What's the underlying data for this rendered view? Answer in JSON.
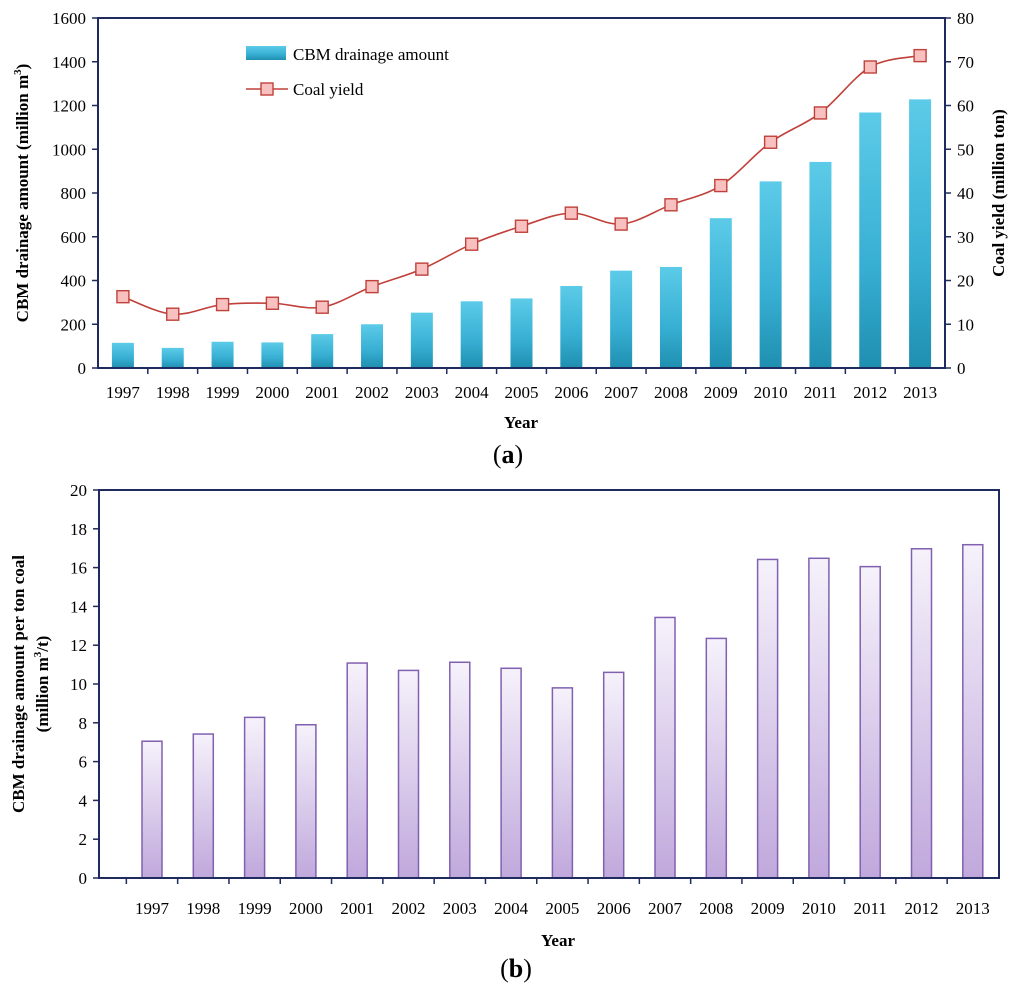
{
  "chart_data": [
    {
      "panel": "a",
      "type": "bar+line",
      "categories": [
        "1997",
        "1998",
        "1999",
        "2000",
        "2001",
        "2002",
        "2003",
        "2004",
        "2005",
        "2006",
        "2007",
        "2008",
        "2009",
        "2010",
        "2011",
        "2012",
        "2013"
      ],
      "series": [
        {
          "name": "CBM drainage amount",
          "kind": "bar",
          "axis": "left",
          "color": "#3cb4d6",
          "values": [
            115,
            92,
            120,
            117,
            155,
            200,
            253,
            305,
            318,
            375,
            445,
            462,
            685,
            853,
            942,
            1168,
            1228
          ]
        },
        {
          "name": "Coal yield",
          "kind": "line",
          "axis": "right",
          "color": "#c0403a",
          "marker_fill": "#f9c0c0",
          "values": [
            16.3,
            12.3,
            14.5,
            14.8,
            13.9,
            18.6,
            22.6,
            28.3,
            32.4,
            35.4,
            32.9,
            37.3,
            41.7,
            51.6,
            58.3,
            68.8,
            71.4
          ]
        }
      ],
      "xlabel": "Year",
      "ylabel_left_main": "CBM drainage amount  (million m",
      "ylabel_left_sup": "3",
      "ylabel_left_end": ")",
      "ylabel_right": "Coal yield (million ton)",
      "ylim_left": [
        0,
        1600
      ],
      "ylim_right": [
        0,
        80
      ],
      "yticks_left": [
        "0",
        "200",
        "400",
        "600",
        "800",
        "1000",
        "1200",
        "1400",
        "1600"
      ],
      "yticks_right": [
        "0",
        "10",
        "20",
        "30",
        "40",
        "50",
        "60",
        "70",
        "80"
      ],
      "legend": [
        "CBM drainage amount",
        "Coal yield"
      ],
      "legend_position": "top-left",
      "label_open": "(",
      "label_letter": "a",
      "label_close": ")"
    },
    {
      "panel": "b",
      "type": "bar",
      "categories": [
        "1997",
        "1998",
        "1999",
        "2000",
        "2001",
        "2002",
        "2003",
        "2004",
        "2005",
        "2006",
        "2007",
        "2008",
        "2009",
        "2010",
        "2011",
        "2012",
        "2013"
      ],
      "series": [
        {
          "name": "CBM drainage amount per ton coal",
          "color": "#8060b0",
          "fill_top": "#f4f0fa",
          "fill_bottom": "#c0a8dc",
          "values": [
            7.05,
            7.42,
            8.28,
            7.9,
            11.08,
            10.7,
            11.12,
            10.81,
            9.8,
            10.6,
            13.43,
            12.35,
            16.42,
            16.48,
            16.05,
            16.97,
            17.18
          ]
        }
      ],
      "xlabel": "Year",
      "ylabel_line1": "CBM drainage amount per ton coal",
      "ylabel_line2_main": "(million m",
      "ylabel_line2_sup": "3",
      "ylabel_line2_end": "/t)",
      "ylim": [
        0,
        20
      ],
      "yticks": [
        "0",
        "2",
        "4",
        "6",
        "8",
        "10",
        "12",
        "14",
        "16",
        "18",
        "20"
      ],
      "label_open": "(",
      "label_letter": "b",
      "label_close": ")"
    }
  ]
}
